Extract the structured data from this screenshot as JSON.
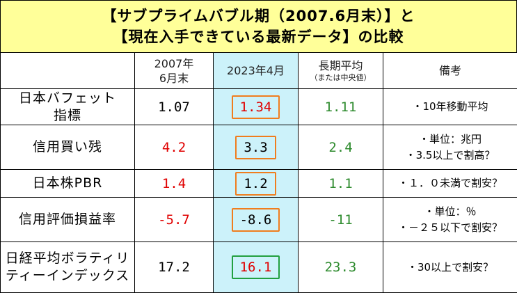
{
  "title": {
    "line1": "【サブプライムバブル期（2007.6月末）】と",
    "line2": "【現在入手できている最新データ】の比較"
  },
  "headers": {
    "blank": "",
    "col_2007": [
      "2007年",
      "6月末"
    ],
    "col_2023": "2023年4月",
    "col_longterm": "長期平均",
    "col_longterm_sub": "（または中央値）",
    "col_notes": "備考"
  },
  "rows": [
    {
      "label": [
        "日本バフェット",
        "指標"
      ],
      "v2007": "1.07",
      "v2023": "1.34",
      "vlong": "1.11",
      "notes": [
        "・10年移動平均"
      ]
    },
    {
      "label": [
        "信用買い残"
      ],
      "v2007": "4.2",
      "v2023": "3.3",
      "vlong": "2.4",
      "notes": [
        "・単位：兆円",
        "・3.5以上で割高？"
      ]
    },
    {
      "label": [
        "日本株PBR"
      ],
      "v2007": "1.4",
      "v2023": "1.2",
      "vlong": "1.1",
      "notes": [
        "・１．０未満で割安？"
      ]
    },
    {
      "label": [
        "信用評価損益率"
      ],
      "v2007": "-5.7",
      "v2023": "-8.6",
      "vlong": "-11",
      "notes": [
        "・単位：％",
        "・－２５以下で割安？"
      ]
    },
    {
      "label": [
        "日経平均ボラティリ",
        "ティーインデックス"
      ],
      "v2007": "17.2",
      "v2023": "16.1",
      "vlong": "23.3",
      "notes": [
        "・30以上で割安？"
      ]
    }
  ],
  "colors": {
    "title_bg": "#ffff99",
    "highlight_bg": "#ccf2fa",
    "red": "#e00000",
    "green": "#2e8b2e",
    "orange_box": "#f07d1e",
    "green_box": "#22a040"
  }
}
